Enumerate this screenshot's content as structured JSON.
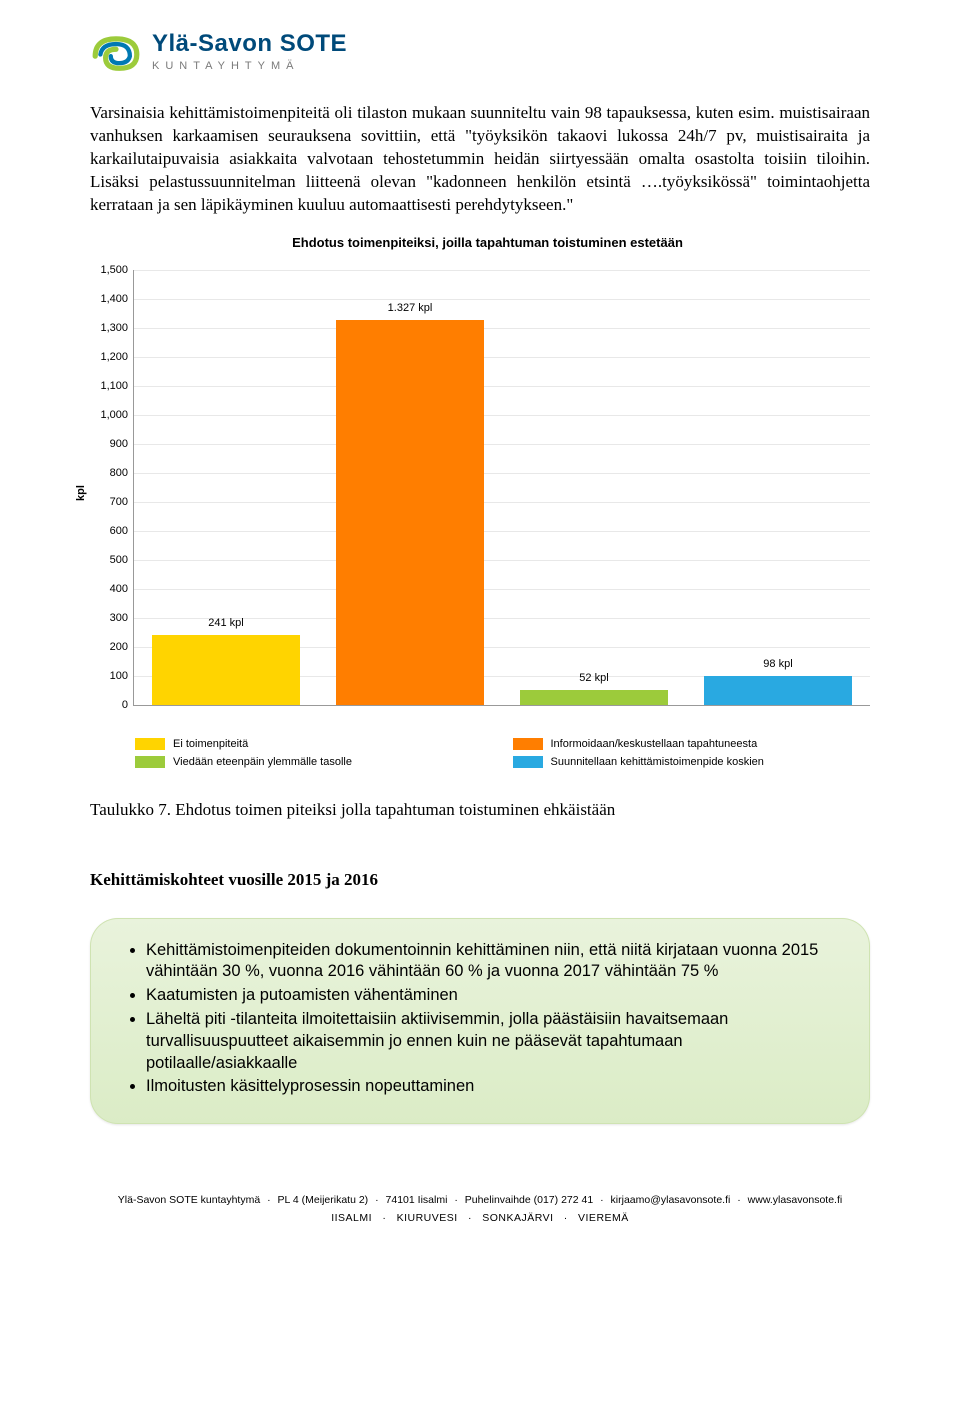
{
  "logo": {
    "title": "Ylä-Savon SOTE",
    "subtitle": "KUNTAYHTYMÄ",
    "swirl_colors": {
      "outer": "#9ccb3b",
      "inner": "#0079b3"
    }
  },
  "paragraph": "Varsinaisia kehittämistoimenpiteitä oli tilaston mukaan suunniteltu vain 98 tapauksessa, kuten esim. muistisairaan vanhuksen karkaamisen seurauksena sovittiin, että \"työyksikön takaovi lukossa 24h/7 pv, muistisairaita ja karkailutaipuvaisia asiakkaita valvotaan tehostetummin heidän siirtyessään omalta osastolta toisiin tiloihin. Lisäksi pelastussuunnitelman liitteenä olevan \"kadonneen henkilön etsintä ….työyksikössä\" toimintaohjetta kerrataan ja sen läpikäyminen kuuluu automaattisesti perehdytykseen.\"",
  "chart": {
    "type": "bar",
    "title": "Ehdotus toimenpiteiksi, joilla tapahtuman toistuminen estetään",
    "ylabel": "kpl",
    "ylim": [
      0,
      1500
    ],
    "ytick_step": 100,
    "grid_color": "#e8e8e8",
    "background_color": "#ffffff",
    "bar_width_pct": 20,
    "series": [
      {
        "value": 241,
        "label": "241 kpl",
        "color": "#ffd400",
        "legend": "Ei toimenpiteitä"
      },
      {
        "value": 1327,
        "label": "1.327 kpl",
        "color": "#ff7e00",
        "legend": "Informoidaan/keskustellaan tapahtuneesta"
      },
      {
        "value": 52,
        "label": "52 kpl",
        "color": "#9ccb3b",
        "legend": "Viedään eteenpäin ylemmälle tasolle"
      },
      {
        "value": 98,
        "label": "98 kpl",
        "color": "#29a9e1",
        "legend": "Suunnitellaan kehittämistoimenpide koskien"
      }
    ]
  },
  "caption": "Taulukko 7. Ehdotus toimen piteiksi jolla tapahtuman toistuminen ehkäistään",
  "section_title": "Kehittämiskohteet vuosille 2015 ja 2016",
  "goals": [
    "Kehittämistoimenpiteiden dokumentoinnin kehittäminen niin, että niitä kirjataan vuonna 2015 vähintään 30 %, vuonna 2016 vähintään 60 % ja vuonna 2017 vähintään 75 %",
    "Kaatumisten ja putoamisten vähentäminen",
    "Läheltä piti -tilanteita ilmoitettaisiin aktiivisemmin, jolla päästäisiin havaitsemaan turvallisuuspuutteet aikaisemmin jo ennen kuin ne pääsevät tapahtumaan potilaalle/asiakkaalle",
    "Ilmoitusten käsittelyprosessin nopeuttaminen"
  ],
  "footer": {
    "line1_parts": [
      "Ylä-Savon SOTE kuntayhtymä",
      "PL 4 (Meijerikatu 2)",
      "74101 Iisalmi",
      "Puhelinvaihde (017) 272 41",
      "kirjaamo@ylasavonsote.fi",
      "www.ylasavonsote.fi"
    ],
    "line2_parts": [
      "IISALMI",
      "KIURUVESI",
      "SONKAJÄRVI",
      "VIEREMÄ"
    ]
  }
}
